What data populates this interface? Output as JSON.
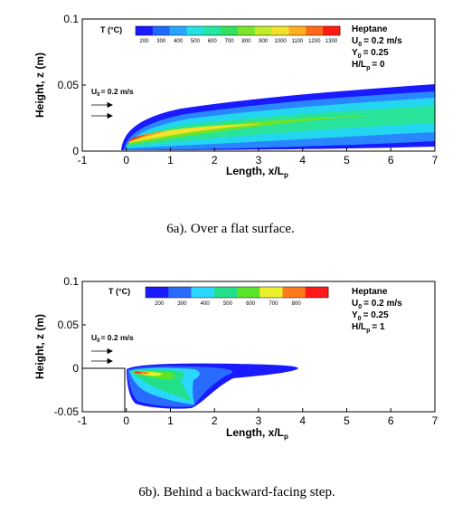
{
  "chart_data": [
    {
      "type": "heatmap",
      "xlabel": "Length, x/L",
      "xlabel_sub": "p",
      "ylabel": "Height, z (m)",
      "xlim": [
        -1,
        7
      ],
      "ylim": [
        0,
        0.1
      ],
      "xticks": [
        "-1",
        "0",
        "1",
        "2",
        "3",
        "4",
        "5",
        "6",
        "7"
      ],
      "yticks": [
        "0",
        "0.05",
        "0.1"
      ],
      "legend_title": "T (°C)",
      "legend_levels": [
        "200",
        "300",
        "400",
        "500",
        "600",
        "700",
        "800",
        "900",
        "1000",
        "1100",
        "1200",
        "1300"
      ],
      "legend_colors": [
        "#1a1aff",
        "#1f6bff",
        "#2aa5ff",
        "#21e1e1",
        "#22e8a3",
        "#2fe35c",
        "#7be52a",
        "#c2ec2a",
        "#f3e22a",
        "#ffae1f",
        "#ff6a19",
        "#ff1a12"
      ],
      "info": {
        "fuel": "Heptane",
        "u_label": "U",
        "u_sub": "0",
        "u_value": "= 0.2 m/s",
        "y_label": "Y",
        "y_sub": "0",
        "y_value": "= 0.25",
        "h_label": "H/L",
        "h_sub": "p",
        "h_value": "= 0"
      },
      "inflow_label": "U",
      "inflow_sub": "0",
      "inflow_value": "= 0.2 m/s",
      "caption": "6a). Over a flat surface."
    },
    {
      "type": "heatmap",
      "xlabel": "Length, x/L",
      "xlabel_sub": "p",
      "ylabel": "Height, z (m)",
      "xlim": [
        -1,
        7
      ],
      "ylim": [
        -0.05,
        0.1
      ],
      "xticks": [
        "-1",
        "0",
        "1",
        "2",
        "3",
        "4",
        "5",
        "6",
        "7"
      ],
      "yticks": [
        "-0.05",
        "0",
        "0.05",
        "0.1"
      ],
      "legend_title": "T (°C)",
      "legend_levels": [
        "200",
        "300",
        "400",
        "500",
        "600",
        "700",
        "800"
      ],
      "legend_colors": [
        "#1a1aff",
        "#2a6bff",
        "#2ad8ff",
        "#22e08a",
        "#5ae52a",
        "#eaf02a",
        "#ff7a1a",
        "#ff1a1a"
      ],
      "info": {
        "fuel": "Heptane",
        "u_label": "U",
        "u_sub": "0",
        "u_value": "= 0.2 m/s",
        "y_label": "Y",
        "y_sub": "0",
        "y_value": "= 0.25",
        "h_label": "H/L",
        "h_sub": "p",
        "h_value": "= 1"
      },
      "inflow_label": "U",
      "inflow_sub": "0",
      "inflow_value": "= 0.2 m/s",
      "caption": "6b). Behind a backward-facing step."
    }
  ]
}
